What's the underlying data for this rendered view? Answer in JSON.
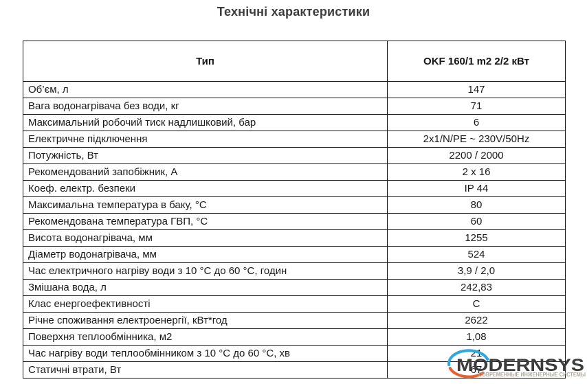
{
  "title": "Технічні характеристики",
  "table": {
    "header": {
      "param": "Тип",
      "value": "OKF 160/1 m2 2/2 кВт"
    },
    "rows": [
      {
        "param": "Об’єм, л",
        "value": "147"
      },
      {
        "param": "Вага водонагрівача без води, кг",
        "value": "71"
      },
      {
        "param": "Максимальний робочий тиск надлишковий, бар",
        "value": "6"
      },
      {
        "param": "Електричне підключення",
        "value": "2x1/N/PE ~ 230V/50Hz"
      },
      {
        "param": "Потужність, Вт",
        "value": "2200 / 2000"
      },
      {
        "param": "Рекомендований запобіжник, А",
        "value": "2 x 16"
      },
      {
        "param": "Коеф. електр. безпеки",
        "value": "IP 44"
      },
      {
        "param": "Максимальна температура в баку, °С",
        "value": "80"
      },
      {
        "param": "Рекомендована температура ГВП, °С",
        "value": "60"
      },
      {
        "param": "Висота водонагрівача, мм",
        "value": "1255"
      },
      {
        "param": "Діаметр водонагрівача, мм",
        "value": "524"
      },
      {
        "param": "Час електричного нагріву води з 10 °С до 60 °С, годин",
        "value": "3,9 / 2,0"
      },
      {
        "param": "Змішана вода, л",
        "value": "242,83"
      },
      {
        "param": "Клас енергоефективності",
        "value": "C"
      },
      {
        "param": "Річне споживання електроенергії, кВт*год",
        "value": "2622"
      },
      {
        "param": "Поверхня теплообмінника, м2",
        "value": "1,08"
      },
      {
        "param": "Час нагріву води теплообмінником з 10 °С до 60 °С, хв",
        "value": "21"
      },
      {
        "param": "Статичні втрати, Вт",
        "value": "67"
      }
    ]
  },
  "watermark": {
    "wordmark": "MODERNSYS",
    "subtitle": "СОВРЕМЕННЫЕ ИНЖЕНЕРНЫЕ СИСТЕМЫ",
    "colors": {
      "blue": "#2fa8dd",
      "orange": "#e85f2d",
      "text": "#3c3c3c",
      "subtitle": "#b3a89c"
    }
  }
}
